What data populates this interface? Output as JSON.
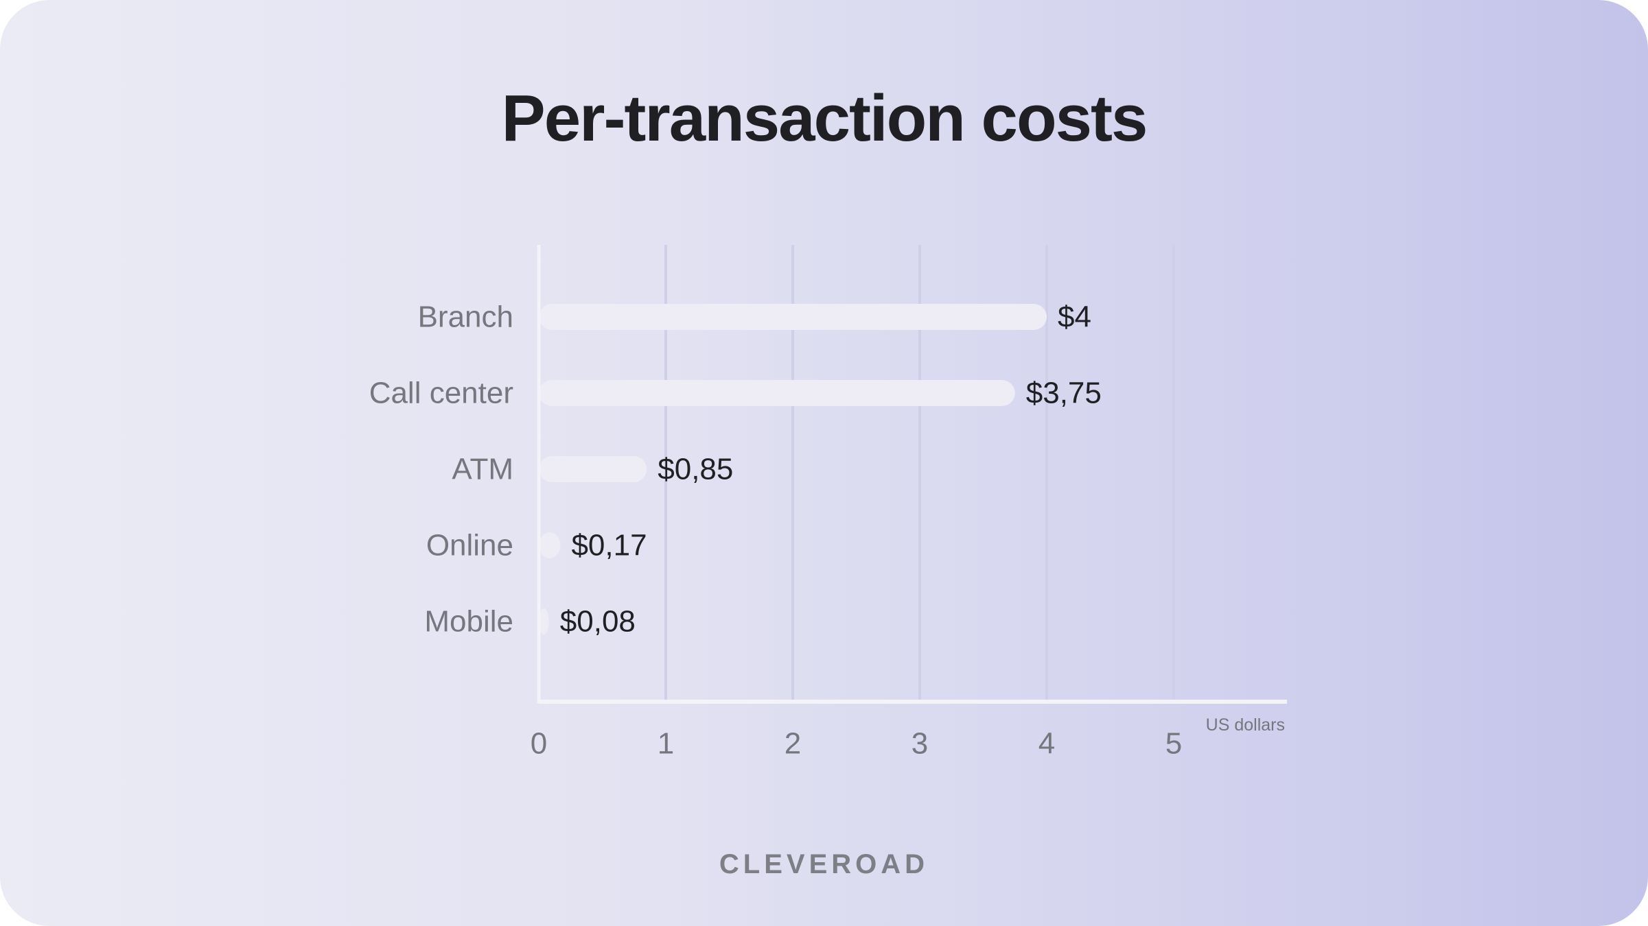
{
  "chart_data": {
    "type": "bar",
    "orientation": "horizontal",
    "title": "Per-transaction costs",
    "categories": [
      "Branch",
      "Call center",
      "ATM",
      "Online",
      "Mobile"
    ],
    "values": [
      4,
      3.75,
      0.85,
      0.17,
      0.08
    ],
    "value_labels": [
      "$4",
      "$3,75",
      "$0,85",
      "$0,17",
      "$0,08"
    ],
    "xlabel": "US dollars",
    "ylabel": "",
    "xlim": [
      0,
      5
    ],
    "xticks": [
      "0",
      "1",
      "2",
      "3",
      "4",
      "5"
    ],
    "grid": true,
    "legend": "none"
  },
  "footer": {
    "brand": "CLEVEROAD"
  },
  "colors": {
    "bar": "#eeedf5",
    "grid": "#cfcfe8",
    "axis": "#f3f3f8",
    "text_dark": "#1f1f24",
    "text_muted": "#76767e"
  }
}
